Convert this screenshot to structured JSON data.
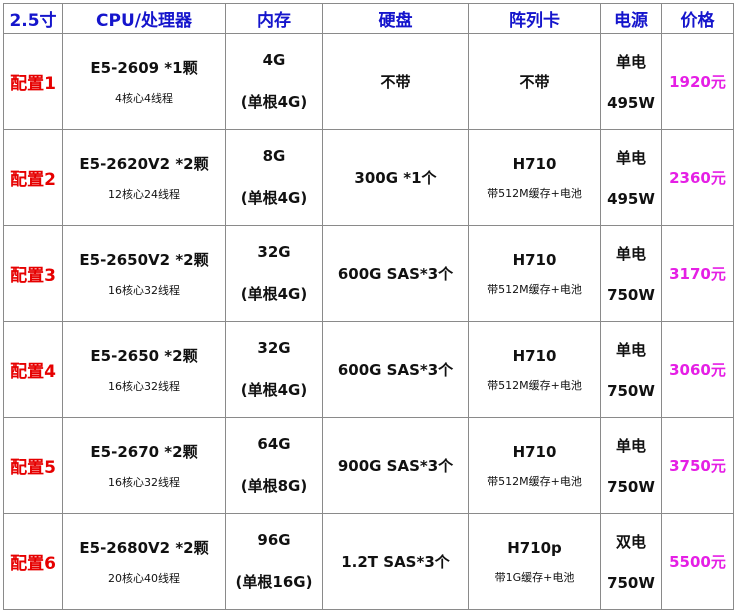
{
  "headers": [
    "2.5寸",
    "CPU/处理器",
    "内存",
    "硬盘",
    "阵列卡",
    "电源",
    "价格"
  ],
  "colors": {
    "header": "#1515cc",
    "config": "#e60000",
    "price": "#e51fe5"
  },
  "rows": [
    {
      "config": "配置1",
      "cpu": "E5-2609 *1颗",
      "cpu_sub": "4核心4线程",
      "mem": "4G",
      "mem_sub": "(单根4G)",
      "disk": "不带",
      "raid": "不带",
      "raid_sub": "",
      "psu": "单电",
      "psu_w": "495W",
      "price": "1920元"
    },
    {
      "config": "配置2",
      "cpu": "E5-2620V2 *2颗",
      "cpu_sub": "12核心24线程",
      "mem": "8G",
      "mem_sub": "(单根4G)",
      "disk": "300G *1个",
      "raid": "H710",
      "raid_sub": "带512M缓存+电池",
      "psu": "单电",
      "psu_w": "495W",
      "price": "2360元"
    },
    {
      "config": "配置3",
      "cpu": "E5-2650V2 *2颗",
      "cpu_sub": "16核心32线程",
      "mem": "32G",
      "mem_sub": "(单根4G)",
      "disk": "600G SAS*3个",
      "raid": "H710",
      "raid_sub": "带512M缓存+电池",
      "psu": "单电",
      "psu_w": "750W",
      "price": "3170元"
    },
    {
      "config": "配置4",
      "cpu": "E5-2650 *2颗",
      "cpu_sub": "16核心32线程",
      "mem": "32G",
      "mem_sub": "(单根4G)",
      "disk": "600G SAS*3个",
      "raid": "H710",
      "raid_sub": "带512M缓存+电池",
      "psu": "单电",
      "psu_w": "750W",
      "price": "3060元"
    },
    {
      "config": "配置5",
      "cpu": "E5-2670 *2颗",
      "cpu_sub": "16核心32线程",
      "mem": "64G",
      "mem_sub": "(单根8G)",
      "disk": "900G SAS*3个",
      "raid": "H710",
      "raid_sub": "带512M缓存+电池",
      "psu": "单电",
      "psu_w": "750W",
      "price": "3750元"
    },
    {
      "config": "配置6",
      "cpu": "E5-2680V2 *2颗",
      "cpu_sub": "20核心40线程",
      "mem": "96G",
      "mem_sub": "(单根16G)",
      "disk": "1.2T SAS*3个",
      "raid": "H710p",
      "raid_sub": "带1G缓存+电池",
      "psu": "双电",
      "psu_w": "750W",
      "price": "5500元"
    }
  ]
}
